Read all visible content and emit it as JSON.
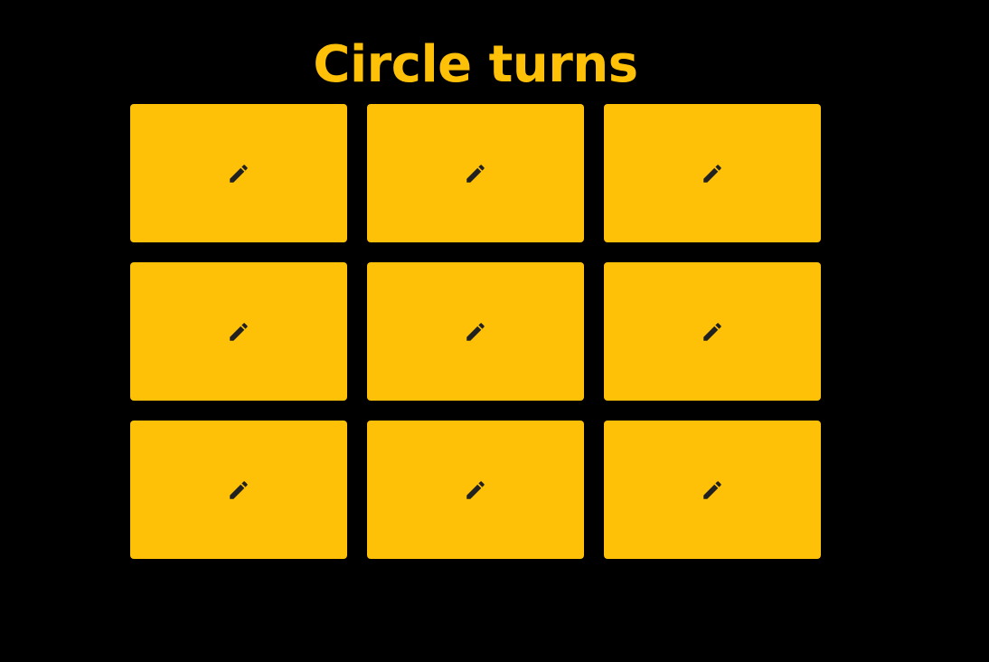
{
  "title": "Circle turns",
  "colors": {
    "background": "#000000",
    "accent": "#ffc107",
    "icon": "#212121"
  },
  "board": {
    "rows": 3,
    "cols": 3,
    "cells": [
      {
        "icon": "pencil-icon",
        "mark": ""
      },
      {
        "icon": "pencil-icon",
        "mark": ""
      },
      {
        "icon": "pencil-icon",
        "mark": ""
      },
      {
        "icon": "pencil-icon",
        "mark": ""
      },
      {
        "icon": "pencil-icon",
        "mark": ""
      },
      {
        "icon": "pencil-icon",
        "mark": ""
      },
      {
        "icon": "pencil-icon",
        "mark": ""
      },
      {
        "icon": "pencil-icon",
        "mark": ""
      },
      {
        "icon": "pencil-icon",
        "mark": ""
      }
    ]
  }
}
